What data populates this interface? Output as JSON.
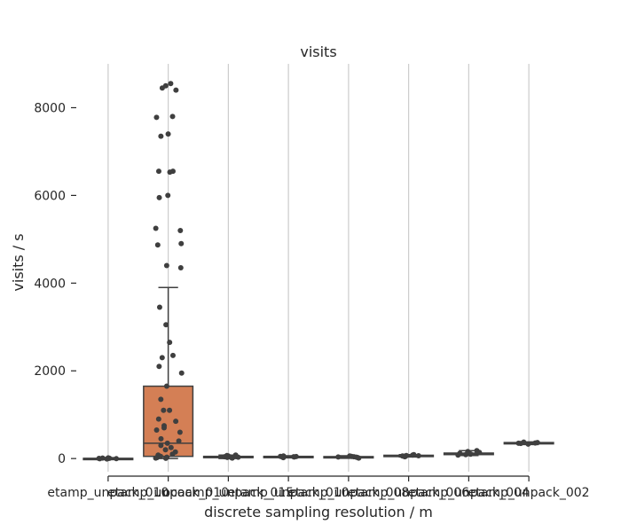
{
  "chart_data": {
    "type": "box",
    "title": "visits",
    "xlabel": "discrete sampling resolution / m",
    "ylabel": "visits / s",
    "ylim": [
      -300,
      9000
    ],
    "yticks": [
      0,
      2000,
      4000,
      6000,
      8000
    ],
    "grid": "vertical",
    "categories": [
      "etamp_unpack_010",
      "etamp_unpack_010",
      "ocoamp_unpack_015",
      "etamp_unpack_010",
      "etamp_unpack_008",
      "etamp_unpack_006",
      "etamp_unpack_004",
      "etamp_unpack_002"
    ],
    "boxes": [
      {
        "q1": -10,
        "median": 0,
        "q3": 5,
        "whisker_low": -20,
        "whisker_high": 20,
        "color": "#5a7bc4",
        "points": [
          0,
          5,
          -5,
          10,
          -10,
          15,
          3,
          -3
        ]
      },
      {
        "q1": 50,
        "median": 350,
        "q3": 1650,
        "whisker_low": 0,
        "whisker_high": 3900,
        "color": "#d47f55",
        "points": [
          8550,
          8500,
          8450,
          8400,
          7800,
          7780,
          7400,
          7350,
          6550,
          6550,
          6530,
          6000,
          5950,
          5250,
          5200,
          4900,
          4870,
          4400,
          4350,
          3450,
          3050,
          2650,
          2350,
          2300,
          2100,
          1950,
          1650,
          1350,
          1100,
          1100,
          900,
          850,
          750,
          700,
          650,
          600,
          450,
          400,
          350,
          300,
          250,
          200,
          150,
          100,
          80,
          50,
          30,
          20,
          10,
          5
        ]
      },
      {
        "q1": 20,
        "median": 35,
        "q3": 50,
        "whisker_low": 0,
        "whisker_high": 80,
        "color": "#6aa07a",
        "points": [
          10,
          20,
          30,
          40,
          50,
          60,
          70,
          80,
          25,
          45
        ]
      },
      {
        "q1": 30,
        "median": 40,
        "q3": 50,
        "whisker_low": 15,
        "whisker_high": 65,
        "color": "#c44e52",
        "points": [
          20,
          30,
          40,
          50,
          60,
          35,
          45
        ]
      },
      {
        "q1": 20,
        "median": 35,
        "q3": 45,
        "whisker_low": 5,
        "whisker_high": 65,
        "color": "#8172b2",
        "points": [
          10,
          20,
          30,
          40,
          50,
          60,
          35
        ]
      },
      {
        "q1": 50,
        "median": 60,
        "q3": 75,
        "whisker_low": 35,
        "whisker_high": 90,
        "color": "#937860",
        "points": [
          40,
          50,
          60,
          70,
          80,
          90,
          55,
          65
        ]
      },
      {
        "q1": 90,
        "median": 105,
        "q3": 125,
        "whisker_low": 70,
        "whisker_high": 180,
        "color": "#da8bc3",
        "points": [
          80,
          90,
          100,
          110,
          120,
          140,
          160,
          180,
          105
        ]
      },
      {
        "q1": 340,
        "median": 355,
        "q3": 365,
        "whisker_low": 320,
        "whisker_high": 380,
        "color": "#8c8c8c",
        "points": [
          330,
          345,
          355,
          365,
          375,
          350
        ]
      }
    ],
    "colors": {
      "point": "#3f3f3f",
      "box_line": "#3f3f3f",
      "grid": "#cccccc",
      "text": "#262626"
    }
  }
}
